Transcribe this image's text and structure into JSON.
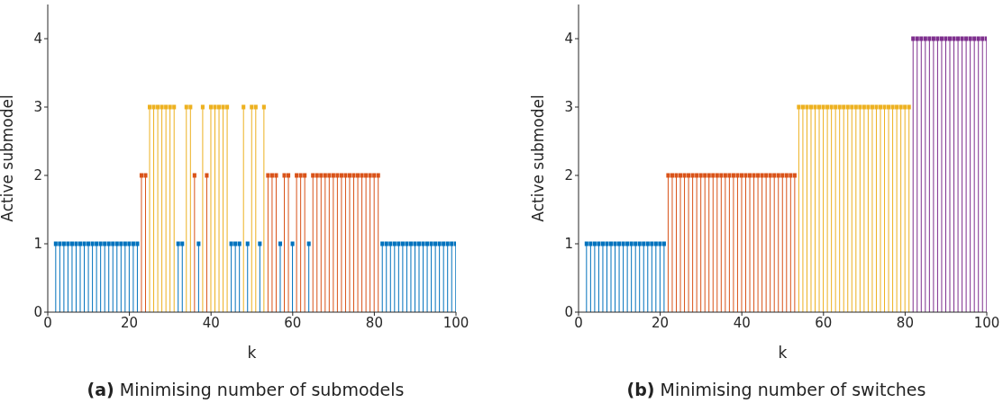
{
  "chart_data": [
    {
      "type": "lollipop",
      "title": "(a) Minimising number of submodels",
      "xlabel": "k",
      "ylabel": "Active submodel",
      "xlim": [
        0,
        100
      ],
      "xticks": [
        0,
        20,
        40,
        60,
        80,
        100
      ],
      "ylim": [
        0,
        4.5
      ],
      "yticks": [
        0,
        1,
        2,
        3,
        4
      ],
      "series": [
        {
          "color": "#0072bd",
          "x": [
            2,
            3,
            4,
            5,
            6,
            7,
            8,
            9,
            10,
            11,
            12,
            13,
            14,
            15,
            16,
            17,
            18,
            19,
            20,
            21,
            22,
            32,
            33,
            37,
            45,
            46,
            47,
            49,
            52,
            57,
            60,
            64,
            82,
            83,
            84,
            85,
            86,
            87,
            88,
            89,
            90,
            91,
            92,
            93,
            94,
            95,
            96,
            97,
            98,
            99,
            100
          ],
          "values": [
            1,
            1,
            1,
            1,
            1,
            1,
            1,
            1,
            1,
            1,
            1,
            1,
            1,
            1,
            1,
            1,
            1,
            1,
            1,
            1,
            1,
            1,
            1,
            1,
            1,
            1,
            1,
            1,
            1,
            1,
            1,
            1,
            1,
            1,
            1,
            1,
            1,
            1,
            1,
            1,
            1,
            1,
            1,
            1,
            1,
            1,
            1,
            1,
            1,
            1,
            1
          ]
        },
        {
          "color": "#d95319",
          "x": [
            23,
            24,
            36,
            39,
            54,
            55,
            56,
            58,
            59,
            61,
            62,
            63,
            65,
            66,
            67,
            68,
            69,
            70,
            71,
            72,
            73,
            74,
            75,
            76,
            77,
            78,
            79,
            80,
            81
          ],
          "values": [
            2,
            2,
            2,
            2,
            2,
            2,
            2,
            2,
            2,
            2,
            2,
            2,
            2,
            2,
            2,
            2,
            2,
            2,
            2,
            2,
            2,
            2,
            2,
            2,
            2,
            2,
            2,
            2,
            2
          ]
        },
        {
          "color": "#edb120",
          "x": [
            25,
            26,
            27,
            28,
            29,
            30,
            31,
            34,
            35,
            38,
            40,
            41,
            42,
            43,
            44,
            48,
            50,
            51,
            53
          ],
          "values": [
            3,
            3,
            3,
            3,
            3,
            3,
            3,
            3,
            3,
            3,
            3,
            3,
            3,
            3,
            3,
            3,
            3,
            3,
            3
          ]
        }
      ]
    },
    {
      "type": "lollipop",
      "title": "(b) Minimising number of switches",
      "xlabel": "k",
      "ylabel": "Active submodel",
      "xlim": [
        0,
        100
      ],
      "xticks": [
        0,
        20,
        40,
        60,
        80,
        100
      ],
      "ylim": [
        0,
        4.5
      ],
      "yticks": [
        0,
        1,
        2,
        3,
        4
      ],
      "series": [
        {
          "color": "#0072bd",
          "x": [
            2,
            3,
            4,
            5,
            6,
            7,
            8,
            9,
            10,
            11,
            12,
            13,
            14,
            15,
            16,
            17,
            18,
            19,
            20,
            21
          ],
          "values": [
            1,
            1,
            1,
            1,
            1,
            1,
            1,
            1,
            1,
            1,
            1,
            1,
            1,
            1,
            1,
            1,
            1,
            1,
            1,
            1
          ]
        },
        {
          "color": "#d95319",
          "x": [
            22,
            23,
            24,
            25,
            26,
            27,
            28,
            29,
            30,
            31,
            32,
            33,
            34,
            35,
            36,
            37,
            38,
            39,
            40,
            41,
            42,
            43,
            44,
            45,
            46,
            47,
            48,
            49,
            50,
            51,
            52,
            53
          ],
          "values": [
            2,
            2,
            2,
            2,
            2,
            2,
            2,
            2,
            2,
            2,
            2,
            2,
            2,
            2,
            2,
            2,
            2,
            2,
            2,
            2,
            2,
            2,
            2,
            2,
            2,
            2,
            2,
            2,
            2,
            2,
            2,
            2
          ]
        },
        {
          "color": "#edb120",
          "x": [
            54,
            55,
            56,
            57,
            58,
            59,
            60,
            61,
            62,
            63,
            64,
            65,
            66,
            67,
            68,
            69,
            70,
            71,
            72,
            73,
            74,
            75,
            76,
            77,
            78,
            79,
            80,
            81
          ],
          "values": [
            3,
            3,
            3,
            3,
            3,
            3,
            3,
            3,
            3,
            3,
            3,
            3,
            3,
            3,
            3,
            3,
            3,
            3,
            3,
            3,
            3,
            3,
            3,
            3,
            3,
            3,
            3,
            3
          ]
        },
        {
          "color": "#7e2f8e",
          "x": [
            82,
            83,
            84,
            85,
            86,
            87,
            88,
            89,
            90,
            91,
            92,
            93,
            94,
            95,
            96,
            97,
            98,
            99,
            100
          ],
          "values": [
            4,
            4,
            4,
            4,
            4,
            4,
            4,
            4,
            4,
            4,
            4,
            4,
            4,
            4,
            4,
            4,
            4,
            4,
            4
          ]
        }
      ]
    }
  ]
}
